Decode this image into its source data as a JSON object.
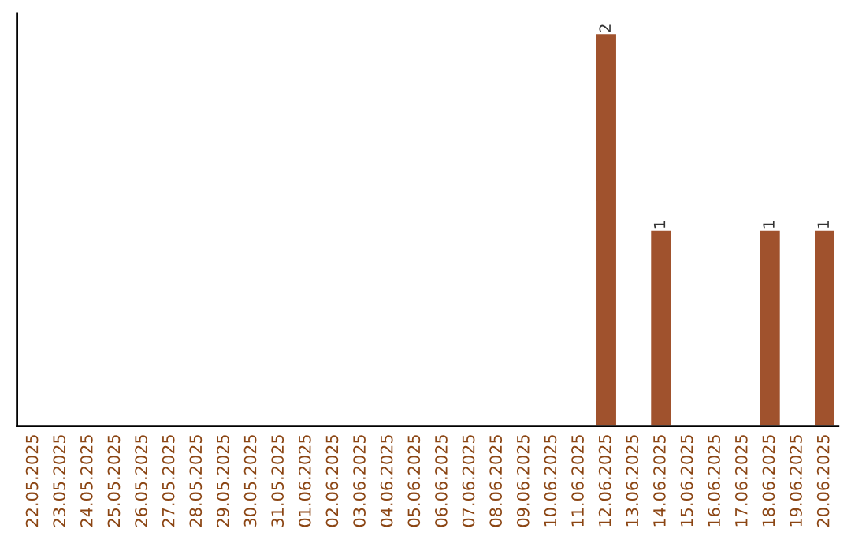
{
  "chart_data": {
    "type": "bar",
    "categories": [
      "22.05.2025",
      "23.05.2025",
      "24.05.2025",
      "25.05.2025",
      "26.05.2025",
      "27.05.2025",
      "28.05.2025",
      "29.05.2025",
      "30.05.2025",
      "31.05.2025",
      "01.06.2025",
      "02.06.2025",
      "03.06.2025",
      "04.06.2025",
      "05.06.2025",
      "06.06.2025",
      "07.06.2025",
      "08.06.2025",
      "09.06.2025",
      "10.06.2025",
      "11.06.2025",
      "12.06.2025",
      "13.06.2025",
      "14.06.2025",
      "15.06.2025",
      "16.06.2025",
      "17.06.2025",
      "18.06.2025",
      "19.06.2025",
      "20.06.2025"
    ],
    "values": [
      null,
      null,
      null,
      null,
      null,
      null,
      null,
      null,
      null,
      null,
      null,
      null,
      null,
      null,
      null,
      null,
      null,
      null,
      null,
      null,
      null,
      2,
      null,
      1,
      null,
      null,
      null,
      1,
      null,
      1
    ],
    "value_labels": [
      null,
      null,
      null,
      null,
      null,
      null,
      null,
      null,
      null,
      null,
      null,
      null,
      null,
      null,
      null,
      null,
      null,
      null,
      null,
      null,
      null,
      "2",
      null,
      "1",
      null,
      null,
      null,
      "1",
      null,
      "1"
    ],
    "color": "#a0522d",
    "tick_labels": "x",
    "grid": false,
    "legend": false
  }
}
